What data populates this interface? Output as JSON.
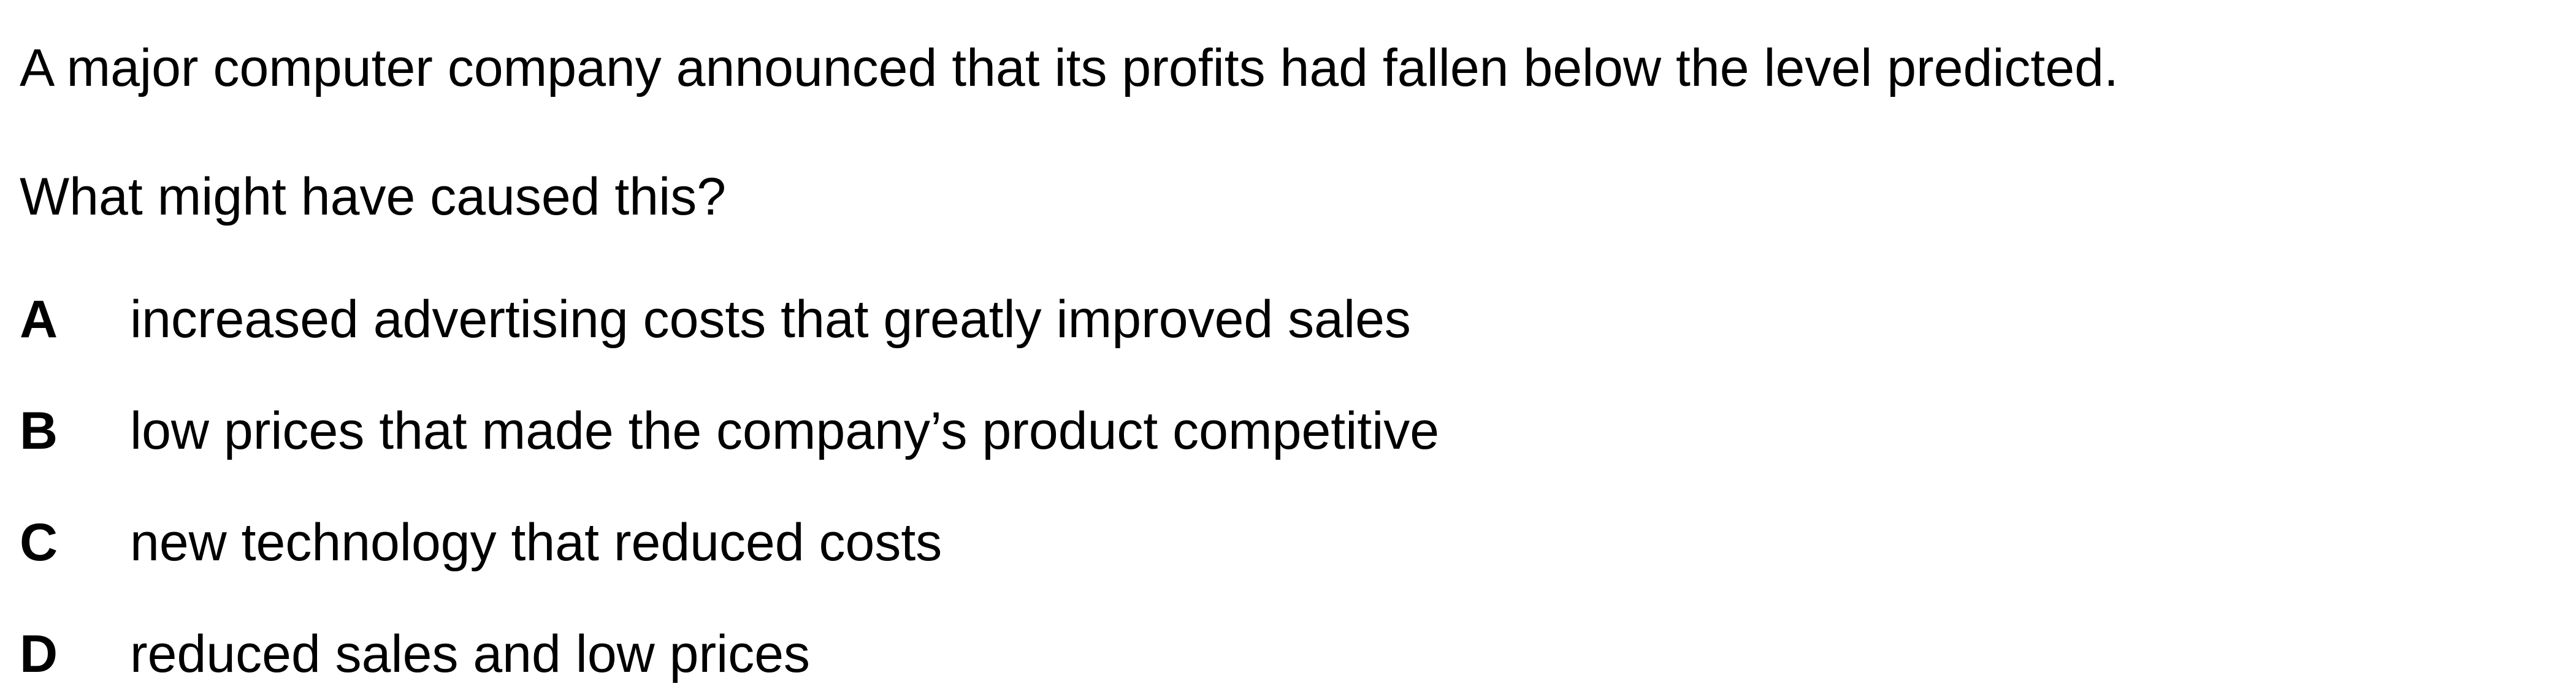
{
  "question": {
    "stem": "A major computer company announced that its profits had fallen below the level predicted.",
    "prompt": "What might have caused this?",
    "options": [
      {
        "letter": "A",
        "text": "increased advertising costs that greatly improved sales"
      },
      {
        "letter": "B",
        "text": "low prices that made the company’s product competitive"
      },
      {
        "letter": "C",
        "text": "new technology that reduced costs"
      },
      {
        "letter": "D",
        "text": "reduced sales and low prices"
      }
    ]
  }
}
